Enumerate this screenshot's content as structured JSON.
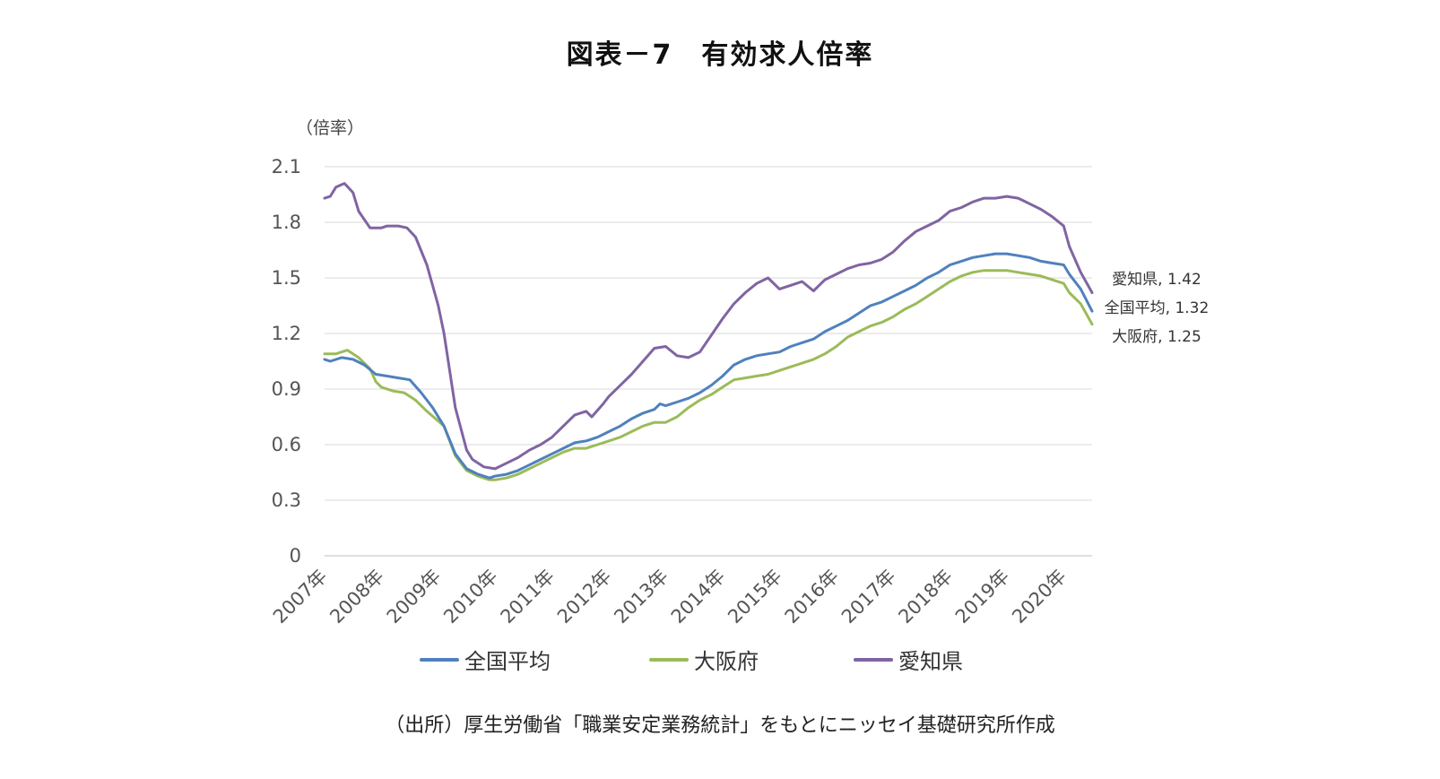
{
  "title": "図表－7　有効求人倍率",
  "source": "（出所）厚生労働省「職業安定業務統計」をもとにニッセイ基礎研究所作成",
  "chart_data": {
    "type": "line",
    "ylabel": "（倍率）",
    "ylim": [
      0,
      2.1
    ],
    "yticks": [
      "0",
      "0.3",
      "0.6",
      "0.9",
      "1.2",
      "1.5",
      "1.8",
      "2.1"
    ],
    "grid": true,
    "legend_position": "bottom",
    "categories": [
      "2007年",
      "2008年",
      "2009年",
      "2010年",
      "2011年",
      "2012年",
      "2013年",
      "2014年",
      "2015年",
      "2016年",
      "2017年",
      "2018年",
      "2019年",
      "2020年"
    ],
    "series": [
      {
        "name": "全国平均",
        "color": "#4f81bd",
        "end_label": "全国平均, 1.32",
        "values": [
          [
            0,
            1.06
          ],
          [
            0.1,
            1.05
          ],
          [
            0.3,
            1.07
          ],
          [
            0.5,
            1.06
          ],
          [
            0.7,
            1.03
          ],
          [
            0.9,
            0.98
          ],
          [
            1.1,
            0.97
          ],
          [
            1.3,
            0.96
          ],
          [
            1.5,
            0.95
          ],
          [
            1.7,
            0.88
          ],
          [
            1.9,
            0.8
          ],
          [
            2.1,
            0.7
          ],
          [
            2.3,
            0.55
          ],
          [
            2.5,
            0.47
          ],
          [
            2.7,
            0.44
          ],
          [
            2.9,
            0.42
          ],
          [
            3.0,
            0.43
          ],
          [
            3.2,
            0.44
          ],
          [
            3.4,
            0.46
          ],
          [
            3.6,
            0.49
          ],
          [
            3.8,
            0.52
          ],
          [
            4.0,
            0.55
          ],
          [
            4.2,
            0.58
          ],
          [
            4.4,
            0.61
          ],
          [
            4.6,
            0.62
          ],
          [
            4.8,
            0.64
          ],
          [
            5.0,
            0.67
          ],
          [
            5.2,
            0.7
          ],
          [
            5.4,
            0.74
          ],
          [
            5.6,
            0.77
          ],
          [
            5.8,
            0.79
          ],
          [
            5.9,
            0.82
          ],
          [
            6.0,
            0.81
          ],
          [
            6.2,
            0.83
          ],
          [
            6.4,
            0.85
          ],
          [
            6.6,
            0.88
          ],
          [
            6.8,
            0.92
          ],
          [
            7.0,
            0.97
          ],
          [
            7.2,
            1.03
          ],
          [
            7.4,
            1.06
          ],
          [
            7.6,
            1.08
          ],
          [
            7.8,
            1.09
          ],
          [
            8.0,
            1.1
          ],
          [
            8.2,
            1.13
          ],
          [
            8.4,
            1.15
          ],
          [
            8.6,
            1.17
          ],
          [
            8.8,
            1.21
          ],
          [
            9.0,
            1.24
          ],
          [
            9.2,
            1.27
          ],
          [
            9.4,
            1.31
          ],
          [
            9.6,
            1.35
          ],
          [
            9.8,
            1.37
          ],
          [
            10.0,
            1.4
          ],
          [
            10.2,
            1.43
          ],
          [
            10.4,
            1.46
          ],
          [
            10.6,
            1.5
          ],
          [
            10.8,
            1.53
          ],
          [
            11.0,
            1.57
          ],
          [
            11.2,
            1.59
          ],
          [
            11.4,
            1.61
          ],
          [
            11.6,
            1.62
          ],
          [
            11.8,
            1.63
          ],
          [
            12.0,
            1.63
          ],
          [
            12.2,
            1.62
          ],
          [
            12.4,
            1.61
          ],
          [
            12.6,
            1.59
          ],
          [
            12.8,
            1.58
          ],
          [
            13.0,
            1.57
          ],
          [
            13.1,
            1.52
          ],
          [
            13.3,
            1.44
          ],
          [
            13.5,
            1.32
          ]
        ]
      },
      {
        "name": "大阪府",
        "color": "#9bbb59",
        "end_label": "大阪府, 1.25",
        "values": [
          [
            0,
            1.09
          ],
          [
            0.2,
            1.09
          ],
          [
            0.4,
            1.11
          ],
          [
            0.6,
            1.07
          ],
          [
            0.8,
            1.01
          ],
          [
            0.9,
            0.94
          ],
          [
            1.0,
            0.91
          ],
          [
            1.2,
            0.89
          ],
          [
            1.4,
            0.88
          ],
          [
            1.6,
            0.84
          ],
          [
            1.8,
            0.78
          ],
          [
            2.1,
            0.7
          ],
          [
            2.3,
            0.54
          ],
          [
            2.5,
            0.46
          ],
          [
            2.7,
            0.43
          ],
          [
            2.9,
            0.41
          ],
          [
            3.0,
            0.41
          ],
          [
            3.2,
            0.42
          ],
          [
            3.4,
            0.44
          ],
          [
            3.6,
            0.47
          ],
          [
            3.8,
            0.5
          ],
          [
            4.0,
            0.53
          ],
          [
            4.2,
            0.56
          ],
          [
            4.4,
            0.58
          ],
          [
            4.6,
            0.58
          ],
          [
            4.8,
            0.6
          ],
          [
            5.0,
            0.62
          ],
          [
            5.2,
            0.64
          ],
          [
            5.4,
            0.67
          ],
          [
            5.6,
            0.7
          ],
          [
            5.8,
            0.72
          ],
          [
            6.0,
            0.72
          ],
          [
            6.2,
            0.75
          ],
          [
            6.4,
            0.8
          ],
          [
            6.6,
            0.84
          ],
          [
            6.8,
            0.87
          ],
          [
            7.0,
            0.91
          ],
          [
            7.2,
            0.95
          ],
          [
            7.4,
            0.96
          ],
          [
            7.6,
            0.97
          ],
          [
            7.8,
            0.98
          ],
          [
            8.0,
            1.0
          ],
          [
            8.2,
            1.02
          ],
          [
            8.4,
            1.04
          ],
          [
            8.6,
            1.06
          ],
          [
            8.8,
            1.09
          ],
          [
            9.0,
            1.13
          ],
          [
            9.2,
            1.18
          ],
          [
            9.4,
            1.21
          ],
          [
            9.6,
            1.24
          ],
          [
            9.8,
            1.26
          ],
          [
            10.0,
            1.29
          ],
          [
            10.2,
            1.33
          ],
          [
            10.4,
            1.36
          ],
          [
            10.6,
            1.4
          ],
          [
            10.8,
            1.44
          ],
          [
            11.0,
            1.48
          ],
          [
            11.2,
            1.51
          ],
          [
            11.4,
            1.53
          ],
          [
            11.6,
            1.54
          ],
          [
            11.8,
            1.54
          ],
          [
            12.0,
            1.54
          ],
          [
            12.2,
            1.53
          ],
          [
            12.4,
            1.52
          ],
          [
            12.6,
            1.51
          ],
          [
            12.8,
            1.49
          ],
          [
            13.0,
            1.47
          ],
          [
            13.1,
            1.42
          ],
          [
            13.3,
            1.36
          ],
          [
            13.5,
            1.25
          ]
        ]
      },
      {
        "name": "愛知県",
        "color": "#8064a2",
        "end_label": "愛知県, 1.42",
        "values": [
          [
            0,
            1.93
          ],
          [
            0.1,
            1.94
          ],
          [
            0.2,
            1.99
          ],
          [
            0.35,
            2.01
          ],
          [
            0.5,
            1.96
          ],
          [
            0.6,
            1.86
          ],
          [
            0.8,
            1.77
          ],
          [
            1.0,
            1.77
          ],
          [
            1.1,
            1.78
          ],
          [
            1.3,
            1.78
          ],
          [
            1.45,
            1.77
          ],
          [
            1.6,
            1.72
          ],
          [
            1.8,
            1.57
          ],
          [
            2.0,
            1.35
          ],
          [
            2.1,
            1.2
          ],
          [
            2.3,
            0.8
          ],
          [
            2.5,
            0.57
          ],
          [
            2.6,
            0.52
          ],
          [
            2.8,
            0.48
          ],
          [
            3.0,
            0.47
          ],
          [
            3.2,
            0.5
          ],
          [
            3.4,
            0.53
          ],
          [
            3.6,
            0.57
          ],
          [
            3.8,
            0.6
          ],
          [
            4.0,
            0.64
          ],
          [
            4.2,
            0.7
          ],
          [
            4.4,
            0.76
          ],
          [
            4.6,
            0.78
          ],
          [
            4.7,
            0.75
          ],
          [
            4.9,
            0.82
          ],
          [
            5.0,
            0.86
          ],
          [
            5.2,
            0.92
          ],
          [
            5.4,
            0.98
          ],
          [
            5.6,
            1.05
          ],
          [
            5.8,
            1.12
          ],
          [
            6.0,
            1.13
          ],
          [
            6.2,
            1.08
          ],
          [
            6.4,
            1.07
          ],
          [
            6.6,
            1.1
          ],
          [
            6.8,
            1.19
          ],
          [
            7.0,
            1.28
          ],
          [
            7.2,
            1.36
          ],
          [
            7.4,
            1.42
          ],
          [
            7.6,
            1.47
          ],
          [
            7.8,
            1.5
          ],
          [
            8.0,
            1.44
          ],
          [
            8.2,
            1.46
          ],
          [
            8.4,
            1.48
          ],
          [
            8.6,
            1.43
          ],
          [
            8.8,
            1.49
          ],
          [
            9.0,
            1.52
          ],
          [
            9.2,
            1.55
          ],
          [
            9.4,
            1.57
          ],
          [
            9.6,
            1.58
          ],
          [
            9.8,
            1.6
          ],
          [
            10.0,
            1.64
          ],
          [
            10.2,
            1.7
          ],
          [
            10.4,
            1.75
          ],
          [
            10.6,
            1.78
          ],
          [
            10.8,
            1.81
          ],
          [
            11.0,
            1.86
          ],
          [
            11.2,
            1.88
          ],
          [
            11.4,
            1.91
          ],
          [
            11.6,
            1.93
          ],
          [
            11.8,
            1.93
          ],
          [
            12.0,
            1.94
          ],
          [
            12.2,
            1.93
          ],
          [
            12.4,
            1.9
          ],
          [
            12.6,
            1.87
          ],
          [
            12.8,
            1.83
          ],
          [
            13.0,
            1.78
          ],
          [
            13.1,
            1.67
          ],
          [
            13.3,
            1.53
          ],
          [
            13.5,
            1.42
          ]
        ]
      }
    ]
  }
}
